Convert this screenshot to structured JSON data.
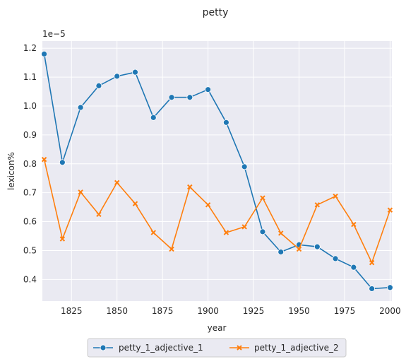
{
  "chart_data": {
    "type": "line",
    "title": "petty",
    "xlabel": "year",
    "ylabel": "lexicon%",
    "y_scale_label": "1e−5",
    "x": [
      1810,
      1820,
      1830,
      1840,
      1850,
      1860,
      1870,
      1880,
      1890,
      1900,
      1910,
      1920,
      1930,
      1940,
      1950,
      1960,
      1970,
      1980,
      1990,
      2000
    ],
    "xlim": [
      1809,
      2001
    ],
    "ylim": [
      0.325,
      1.225
    ],
    "x_ticks": [
      1825,
      1850,
      1875,
      1900,
      1925,
      1950,
      1975,
      2000
    ],
    "y_ticks": [
      0.4,
      0.5,
      0.6,
      0.7,
      0.8,
      0.9,
      1.0,
      1.1,
      1.2
    ],
    "y_tick_labels": [
      "0.4",
      "0.5",
      "0.6",
      "0.7",
      "0.8",
      "0.9",
      "1.0",
      "1.1",
      "1.2"
    ],
    "grid": true,
    "legend_position": "below-center",
    "series": [
      {
        "name": "petty_1_adjective_1",
        "color": "#1f77b4",
        "marker": "circle",
        "values": [
          1.18,
          0.805,
          0.995,
          1.07,
          1.103,
          1.117,
          0.96,
          1.03,
          1.03,
          1.057,
          0.943,
          0.79,
          0.565,
          0.495,
          0.52,
          0.513,
          0.472,
          0.442,
          0.368,
          0.372
        ]
      },
      {
        "name": "petty_1_adjective_2",
        "color": "#ff7f0e",
        "marker": "x",
        "values": [
          0.815,
          0.54,
          0.702,
          0.625,
          0.735,
          0.662,
          0.562,
          0.505,
          0.72,
          0.658,
          0.562,
          0.582,
          0.682,
          0.56,
          0.505,
          0.658,
          0.688,
          0.59,
          0.458,
          0.64
        ]
      }
    ]
  }
}
